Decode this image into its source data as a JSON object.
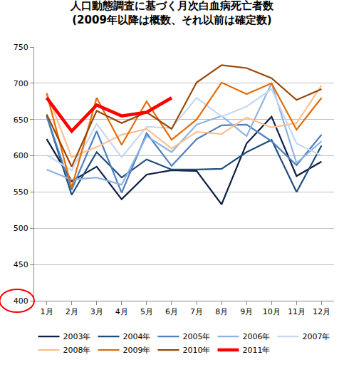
{
  "chart_data": {
    "type": "line",
    "title": "人口動態調査に基づく月次白血病死亡者数",
    "subtitle": "(2009年以降は概数、それ以前は確定数)",
    "categories": [
      "1月",
      "2月",
      "3月",
      "4月",
      "5月",
      "6月",
      "7月",
      "8月",
      "9月",
      "10月",
      "11月",
      "12月"
    ],
    "series": [
      {
        "name": "2003年",
        "color": "#0f1f45",
        "values": [
          623,
          565,
          585,
          540,
          574,
          580,
          579,
          533,
          617,
          654,
          572,
          592
        ]
      },
      {
        "name": "2004年",
        "color": "#1f4e79",
        "values": [
          655,
          546,
          605,
          570,
          595,
          581,
          581,
          582,
          605,
          622,
          550,
          614
        ]
      },
      {
        "name": "2005年",
        "color": "#4f81bd",
        "values": [
          655,
          553,
          634,
          549,
          631,
          586,
          623,
          642,
          643,
          620,
          587,
          629
        ]
      },
      {
        "name": "2006年",
        "color": "#8db3e2",
        "values": [
          581,
          567,
          570,
          560,
          627,
          605,
          643,
          655,
          627,
          700,
          590,
          620
        ]
      },
      {
        "name": "2007年",
        "color": "#c6d9f1",
        "values": [
          601,
          580,
          644,
          598,
          640,
          638,
          680,
          654,
          668,
          692,
          617,
          600
        ]
      },
      {
        "name": "2008年",
        "color": "#fac090",
        "values": [
          687,
          598,
          612,
          629,
          637,
          610,
          633,
          630,
          653,
          639,
          645,
          697
        ]
      },
      {
        "name": "2009年",
        "color": "#e46c0a",
        "values": [
          686,
          556,
          680,
          615,
          675,
          622,
          650,
          701,
          685,
          700,
          636,
          680
        ]
      },
      {
        "name": "2010年",
        "color": "#984807",
        "values": [
          657,
          585,
          662,
          645,
          660,
          637,
          701,
          725,
          721,
          707,
          677,
          692
        ]
      },
      {
        "name": "2011年",
        "color": "#ff0000",
        "values": [
          680,
          634,
          670,
          655,
          660,
          680,
          null,
          null,
          null,
          null,
          null,
          null
        ]
      }
    ],
    "ylim": [
      400,
      750
    ],
    "yticks": [
      400,
      450,
      500,
      550,
      600,
      650,
      700,
      750
    ],
    "grid": true,
    "legend": "bottom"
  }
}
